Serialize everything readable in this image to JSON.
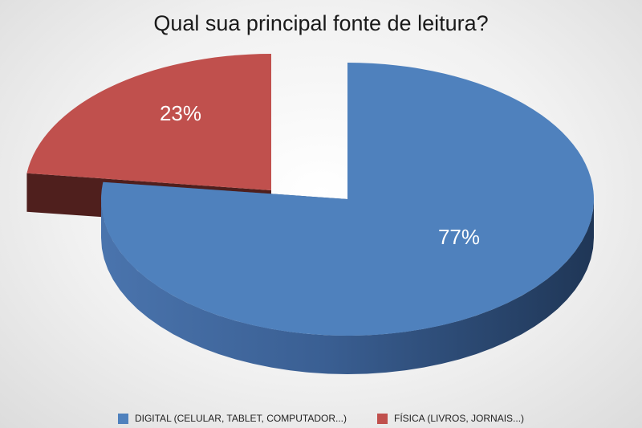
{
  "chart_data": {
    "type": "pie",
    "title": "Qual sua principal fonte de leitura?",
    "legend_position": "bottom",
    "three_d": true,
    "series": [
      {
        "categories": [
          "DIGITAL (CELULAR, TABLET, COMPUTADOR...)",
          "FÍSICA (LIVROS, JORNAIS...)"
        ],
        "values": [
          77,
          23
        ],
        "labels": [
          "77%",
          "23%"
        ],
        "colors": [
          "#4f81bd",
          "#c0504d"
        ],
        "side_colors": [
          "#2c4a74",
          "#4f1f1d"
        ]
      }
    ]
  }
}
